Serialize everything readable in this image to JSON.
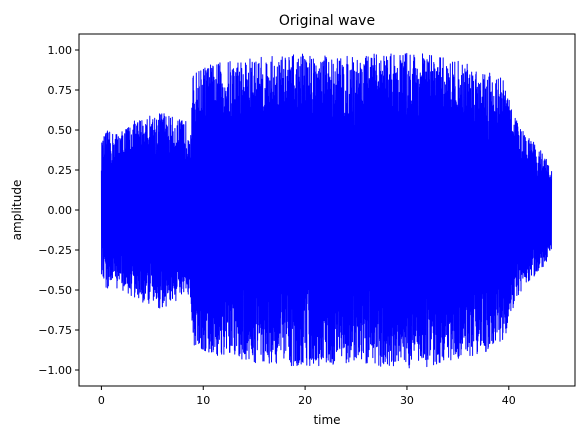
{
  "chart_data": {
    "type": "line",
    "title": "Original wave",
    "xlabel": "time",
    "ylabel": "amplitude",
    "xlim": [
      -2.2,
      46.5
    ],
    "ylim": [
      -1.1,
      1.1
    ],
    "xticks": [
      0,
      10,
      20,
      30,
      40
    ],
    "xtick_labels": [
      "0",
      "10",
      "20",
      "30",
      "40"
    ],
    "yticks": [
      1.0,
      0.75,
      0.5,
      0.25,
      0.0,
      -0.25,
      -0.5,
      -0.75,
      -1.0
    ],
    "ytick_labels": [
      "1.00",
      "0.75",
      "0.50",
      "0.25",
      "0.00",
      "−0.25",
      "−0.50",
      "−0.75",
      "−1.00"
    ],
    "grid": false,
    "series": [
      {
        "color": "#0000ff",
        "x_range": [
          0,
          44.2
        ],
        "envelope": {
          "t": [
            0,
            0.5,
            1,
            2,
            3,
            4,
            5,
            6,
            7,
            8,
            8.8,
            9.0,
            10,
            12,
            14,
            16,
            18,
            20,
            22,
            24,
            26,
            28,
            30,
            32,
            34,
            36,
            38,
            39.5,
            40.5,
            41.5,
            42.5,
            43.5,
            44.2
          ],
          "peak": [
            0.42,
            0.5,
            0.48,
            0.5,
            0.55,
            0.58,
            0.6,
            0.62,
            0.58,
            0.56,
            0.56,
            0.85,
            0.9,
            0.93,
            0.95,
            0.96,
            0.97,
            0.98,
            0.97,
            0.96,
            0.97,
            0.98,
            0.99,
            0.98,
            0.95,
            0.92,
            0.88,
            0.82,
            0.6,
            0.48,
            0.42,
            0.35,
            0.25
          ]
        }
      }
    ]
  }
}
